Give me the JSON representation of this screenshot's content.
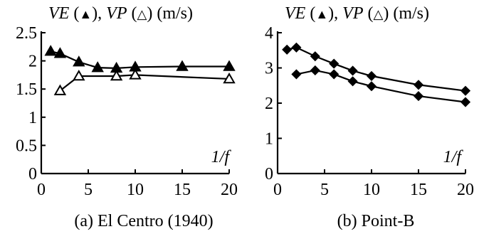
{
  "chart_data": [
    {
      "type": "line",
      "caption": "(a) El Centro (1940)",
      "ylabel_parts": [
        "VE",
        " (",
        "▲",
        "), ",
        "VP",
        " (",
        "△",
        ") (m/s)"
      ],
      "xlabel": "1/f",
      "xlim": [
        0,
        20
      ],
      "ylim": [
        0,
        2.5
      ],
      "xticks": [
        0,
        5,
        10,
        15,
        20
      ],
      "yticks": [
        0,
        0.5,
        1,
        1.5,
        2,
        2.5
      ],
      "ytick_labels": [
        "0",
        "0.5",
        "1",
        "1.5",
        "2",
        "2.5"
      ],
      "grid": false,
      "series": [
        {
          "marker": "filled-triangle",
          "x": [
            1,
            2,
            4,
            6,
            8,
            10,
            15,
            20
          ],
          "y": [
            2.17,
            2.13,
            1.98,
            1.88,
            1.87,
            1.89,
            1.9,
            1.9
          ]
        },
        {
          "marker": "open-triangle",
          "x": [
            2,
            4,
            8,
            10,
            20
          ],
          "y": [
            1.47,
            1.73,
            1.73,
            1.75,
            1.68
          ]
        }
      ]
    },
    {
      "type": "line",
      "caption": "(b) Point-B",
      "ylabel_parts": [
        "VE",
        " (",
        "▲",
        "), ",
        "VP",
        " (",
        "△",
        ") (m/s)"
      ],
      "xlabel": "1/f",
      "xlim": [
        0,
        20
      ],
      "ylim": [
        0,
        4
      ],
      "xticks": [
        0,
        5,
        10,
        15,
        20
      ],
      "yticks": [
        0,
        1,
        2,
        3,
        4
      ],
      "ytick_labels": [
        "0",
        "1",
        "2",
        "3",
        "4"
      ],
      "grid": false,
      "series": [
        {
          "marker": "filled-diamond",
          "x": [
            1,
            2,
            4,
            6,
            8,
            10,
            15,
            20
          ],
          "y": [
            3.52,
            3.58,
            3.33,
            3.12,
            2.92,
            2.77,
            2.52,
            2.35
          ]
        },
        {
          "marker": "filled-diamond",
          "x": [
            2,
            4,
            6,
            8,
            10,
            15,
            20
          ],
          "y": [
            2.82,
            2.93,
            2.82,
            2.62,
            2.48,
            2.2,
            2.03
          ]
        }
      ]
    }
  ]
}
